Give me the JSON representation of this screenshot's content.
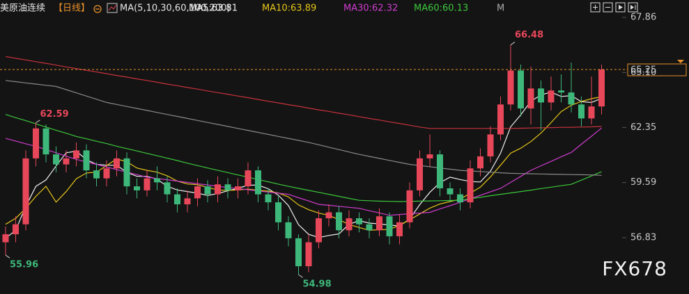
{
  "chart_data": {
    "type": "candlestick",
    "title": "美原油连续",
    "period": "【日线】",
    "ma_label": "MA(5,10,30,60,100,200)",
    "legend_overflow": "M",
    "watermark": "FX678",
    "up_color": "#e8475a",
    "down_color": "#3db87a",
    "open": [
      56.6,
      57.0,
      57.5,
      60.8,
      62.3,
      61.0,
      60.5,
      60.8,
      61.2,
      60.2,
      59.8,
      60.3,
      60.8,
      59.4,
      59.2,
      59.8,
      59.6,
      59.0,
      58.5,
      58.8,
      59.4,
      59.0,
      59.5,
      59.2,
      59.4,
      60.2,
      59.0,
      58.6,
      57.6,
      56.8,
      55.4,
      56.6,
      57.8,
      58.1,
      57.2,
      57.8,
      57.5,
      57.2,
      57.9,
      56.9,
      57.6,
      59.2,
      60.8,
      61.0,
      59.3,
      59.0,
      58.6,
      60.3,
      60.9,
      62.0,
      63.5,
      65.2,
      63.3,
      64.3,
      63.6,
      64.2,
      64.1,
      63.5,
      62.8,
      63.4
    ],
    "high": [
      57.4,
      57.9,
      61.2,
      62.59,
      62.5,
      61.4,
      61.2,
      61.6,
      61.5,
      60.6,
      60.7,
      61.2,
      61.1,
      59.8,
      60.2,
      60.4,
      59.9,
      59.3,
      59.2,
      59.8,
      59.7,
      59.9,
      59.8,
      59.8,
      60.6,
      60.4,
      59.3,
      58.9,
      57.9,
      57.0,
      57.0,
      58.2,
      58.5,
      58.4,
      58.2,
      58.1,
      57.8,
      58.3,
      58.1,
      58.0,
      59.6,
      61.2,
      62.0,
      61.2,
      59.6,
      59.3,
      60.7,
      61.3,
      62.4,
      63.9,
      66.48,
      65.5,
      65.4,
      64.7,
      64.9,
      65.0,
      65.6,
      63.9,
      64.9,
      65.5
    ],
    "low": [
      55.96,
      56.6,
      57.2,
      60.4,
      60.6,
      60.1,
      60.1,
      60.4,
      59.8,
      59.4,
      59.4,
      59.9,
      59.0,
      58.8,
      58.9,
      59.2,
      58.6,
      58.1,
      58.1,
      58.4,
      58.6,
      58.6,
      58.8,
      58.8,
      59.0,
      58.6,
      58.2,
      57.2,
      56.4,
      54.98,
      55.1,
      56.3,
      57.4,
      56.8,
      56.9,
      57.1,
      56.8,
      56.9,
      56.5,
      56.5,
      57.3,
      58.9,
      60.4,
      58.9,
      58.6,
      58.2,
      58.3,
      59.9,
      60.6,
      61.7,
      63.2,
      62.9,
      62.5,
      62.2,
      63.2,
      63.6,
      63.1,
      62.4,
      62.5,
      63.0
    ],
    "close": [
      57.0,
      57.5,
      60.8,
      62.3,
      61.0,
      60.5,
      60.8,
      61.2,
      60.2,
      59.8,
      60.3,
      60.8,
      59.4,
      59.2,
      59.8,
      59.6,
      59.0,
      58.5,
      58.8,
      59.4,
      59.0,
      59.5,
      59.2,
      59.4,
      60.2,
      59.0,
      58.6,
      57.6,
      56.8,
      55.4,
      56.6,
      57.8,
      58.1,
      57.2,
      57.8,
      57.5,
      57.2,
      57.9,
      56.9,
      57.6,
      59.2,
      60.8,
      61.0,
      59.3,
      59.0,
      58.6,
      60.3,
      60.9,
      62.0,
      63.5,
      65.2,
      63.3,
      64.3,
      63.6,
      64.2,
      64.1,
      63.5,
      62.8,
      63.4,
      65.25
    ],
    "series": [
      {
        "name": "MA5:63.81",
        "color": "#f0f0f0",
        "values": [
          56.8,
          57.2,
          58.4,
          59.4,
          59.72,
          60.42,
          61.08,
          61.16,
          60.74,
          60.5,
          60.46,
          60.46,
          60.1,
          59.9,
          59.9,
          59.76,
          59.4,
          59.22,
          59.14,
          59.06,
          58.94,
          59.04,
          59.18,
          59.3,
          59.46,
          59.46,
          59.28,
          58.96,
          58.44,
          57.48,
          57.0,
          56.84,
          56.94,
          57.02,
          57.5,
          57.68,
          57.56,
          57.52,
          57.46,
          57.42,
          57.76,
          58.48,
          59.1,
          59.58,
          59.86,
          59.74,
          59.64,
          59.62,
          60.16,
          61.06,
          62.38,
          62.98,
          63.66,
          63.98,
          64.12,
          63.9,
          63.94,
          63.64,
          63.6,
          63.81
        ]
      },
      {
        "name": "MA10:63.89",
        "color": "#e6c619",
        "values": [
          57.5,
          57.8,
          58.3,
          58.9,
          59.4,
          58.61,
          59.14,
          59.78,
          60.07,
          60.11,
          60.44,
          60.77,
          60.63,
          60.32,
          60.2,
          60.11,
          59.93,
          59.66,
          59.52,
          59.48,
          59.35,
          59.22,
          59.2,
          59.22,
          59.26,
          59.2,
          59.16,
          59.07,
          58.87,
          58.47,
          58.23,
          58.06,
          57.95,
          57.73,
          57.49,
          57.34,
          57.2,
          57.23,
          57.24,
          57.46,
          57.72,
          58.02,
          58.31,
          58.52,
          58.64,
          58.75,
          59.06,
          59.36,
          59.87,
          60.46,
          61.06,
          61.31,
          61.64,
          62.07,
          62.59,
          63.14,
          63.46,
          63.65,
          63.79,
          63.89
        ]
      },
      {
        "name": "MA30:62.32",
        "color": "#d03cd0",
        "values": [
          61.8,
          61.67,
          61.53,
          61.4,
          61.24,
          61.08,
          60.91,
          60.75,
          60.62,
          60.5,
          60.37,
          60.24,
          60.11,
          59.99,
          59.86,
          59.79,
          59.73,
          59.66,
          59.6,
          59.53,
          59.47,
          59.4,
          59.34,
          59.29,
          59.23,
          59.17,
          59.11,
          59.06,
          59.0,
          58.83,
          58.67,
          58.5,
          58.45,
          58.4,
          58.35,
          58.3,
          58.18,
          58.07,
          57.95,
          57.99,
          58.03,
          58.06,
          58.1,
          58.27,
          58.43,
          58.6,
          58.78,
          58.95,
          59.13,
          59.3,
          59.6,
          59.9,
          60.2,
          60.43,
          60.65,
          60.88,
          61.1,
          61.51,
          61.91,
          62.32
        ]
      },
      {
        "name": "MA60:60.13",
        "color": "#3cc83c",
        "values": [
          63.0,
          62.84,
          62.69,
          62.53,
          62.37,
          62.21,
          62.06,
          61.9,
          61.78,
          61.66,
          61.54,
          61.41,
          61.29,
          61.17,
          61.05,
          60.93,
          60.81,
          60.69,
          60.56,
          60.44,
          60.32,
          60.2,
          60.09,
          59.97,
          59.86,
          59.74,
          59.63,
          59.51,
          59.4,
          59.3,
          59.2,
          59.1,
          59.0,
          58.9,
          58.8,
          58.7,
          58.68,
          58.66,
          58.65,
          58.64,
          58.65,
          58.66,
          58.67,
          58.68,
          58.69,
          58.7,
          58.78,
          58.85,
          58.93,
          59.0,
          59.07,
          59.14,
          59.21,
          59.29,
          59.36,
          59.43,
          59.5,
          59.71,
          59.92,
          60.13
        ]
      },
      {
        "color": "#8a8a8a",
        "values": [
          64.7,
          64.64,
          64.58,
          64.52,
          64.46,
          64.4,
          64.24,
          64.08,
          63.92,
          63.76,
          63.6,
          63.5,
          63.4,
          63.3,
          63.2,
          63.1,
          63.0,
          62.9,
          62.8,
          62.7,
          62.6,
          62.5,
          62.4,
          62.3,
          62.2,
          62.1,
          62.0,
          61.9,
          61.8,
          61.7,
          61.6,
          61.48,
          61.36,
          61.24,
          61.12,
          61.0,
          60.9,
          60.8,
          60.7,
          60.6,
          60.5,
          60.44,
          60.38,
          60.32,
          60.26,
          60.2,
          60.17,
          60.14,
          60.11,
          60.08,
          60.05,
          60.04,
          60.03,
          60.02,
          60.01,
          60.0,
          59.99,
          59.98,
          59.97,
          59.95
        ]
      },
      {
        "color": "#c8323c",
        "values": [
          65.9,
          65.81,
          65.73,
          65.64,
          65.56,
          65.47,
          65.38,
          65.3,
          65.21,
          65.13,
          65.04,
          64.95,
          64.87,
          64.78,
          64.7,
          64.61,
          64.52,
          64.44,
          64.35,
          64.27,
          64.18,
          64.09,
          64.01,
          63.92,
          63.84,
          63.75,
          63.66,
          63.58,
          63.49,
          63.41,
          63.32,
          63.23,
          63.15,
          63.06,
          62.98,
          62.89,
          62.8,
          62.72,
          62.63,
          62.55,
          62.46,
          62.37,
          62.3,
          62.3,
          62.3,
          62.3,
          62.3,
          62.3,
          62.3,
          62.3,
          62.3,
          62.31,
          62.32,
          62.33,
          62.34,
          62.35,
          62.36,
          62.37,
          62.38,
          62.4
        ]
      }
    ],
    "ylim": [
      54.01,
      68.73
    ],
    "yticks": [
      56.83,
      59.59,
      62.35,
      {
        "value": 65.1,
        "label": "65.10"
      },
      67.86
    ],
    "last_price_color": "#e8902a"
  }
}
